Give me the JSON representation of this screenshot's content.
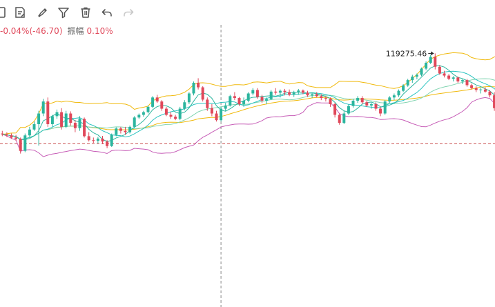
{
  "toolbar": {
    "items": [
      {
        "name": "draw-rect-icon",
        "interactable": true
      },
      {
        "name": "note-edit-icon",
        "interactable": true
      },
      {
        "name": "brush-icon",
        "interactable": true
      },
      {
        "name": "filter-icon",
        "interactable": true
      },
      {
        "name": "trash-icon",
        "interactable": true
      },
      {
        "name": "undo-icon",
        "interactable": true
      },
      {
        "name": "redo-icon",
        "interactable": false
      }
    ]
  },
  "info": {
    "change": "-0.04%(-46.70)",
    "amplitude_label": "振幅",
    "amplitude": "0.10%"
  },
  "colors": {
    "up": "#2bb59e",
    "down": "#e0485a",
    "ma_yellow": "#f0b90b",
    "ma_teal": "#29c3c0",
    "boll_mid": "#80d4b0",
    "boll_lower": "#c65bb6",
    "crosshair": "#888888",
    "price_line": "#c84a4a"
  },
  "chart_data": {
    "type": "candlestick",
    "high_label": "119275.46",
    "ylim": [
      118700,
      119320
    ],
    "price_line": 118937,
    "crosshair_index": 48,
    "candles": [
      [
        118975,
        118985,
        118965,
        118972
      ],
      [
        118972,
        118980,
        118962,
        118968
      ],
      [
        118968,
        118975,
        118955,
        118960
      ],
      [
        118960,
        118970,
        118948,
        118955
      ],
      [
        118955,
        118960,
        118900,
        118910
      ],
      [
        118910,
        118975,
        118905,
        118968
      ],
      [
        118968,
        119000,
        118960,
        118990
      ],
      [
        118990,
        119020,
        118985,
        119010
      ],
      [
        119010,
        119060,
        118930,
        119050
      ],
      [
        119050,
        119105,
        119040,
        119095
      ],
      [
        119095,
        119110,
        119000,
        119010
      ],
      [
        119010,
        119045,
        119000,
        119040
      ],
      [
        119040,
        119065,
        119030,
        119055
      ],
      [
        119055,
        119070,
        118990,
        119000
      ],
      [
        119000,
        119060,
        118995,
        119050
      ],
      [
        119050,
        119058,
        119005,
        119015
      ],
      [
        119015,
        119025,
        118980,
        118995
      ],
      [
        118995,
        119040,
        118985,
        119030
      ],
      [
        119030,
        119035,
        118960,
        118965
      ],
      [
        118965,
        118980,
        118945,
        118950
      ],
      [
        118950,
        118960,
        118940,
        118948
      ],
      [
        118948,
        118962,
        118938,
        118956
      ],
      [
        118956,
        118966,
        118935,
        118945
      ],
      [
        118945,
        118950,
        118920,
        118928
      ],
      [
        118928,
        118975,
        118925,
        118970
      ],
      [
        118970,
        118998,
        118965,
        118994
      ],
      [
        118994,
        119000,
        118975,
        118985
      ],
      [
        118985,
        119000,
        118970,
        118980
      ],
      [
        118980,
        119005,
        118975,
        119000
      ],
      [
        119000,
        119040,
        118995,
        119035
      ],
      [
        119035,
        119050,
        119030,
        119045
      ],
      [
        119045,
        119060,
        119038,
        119055
      ],
      [
        119055,
        119080,
        119050,
        119075
      ],
      [
        119075,
        119115,
        119070,
        119110
      ],
      [
        119110,
        119120,
        119090,
        119095
      ],
      [
        119095,
        119100,
        119060,
        119068
      ],
      [
        119068,
        119075,
        119040,
        119045
      ],
      [
        119045,
        119055,
        119030,
        119038
      ],
      [
        119038,
        119045,
        119025,
        119030
      ],
      [
        119030,
        119075,
        119025,
        119068
      ],
      [
        119068,
        119100,
        119062,
        119092
      ],
      [
        119092,
        119130,
        119085,
        119125
      ],
      [
        119125,
        119170,
        119118,
        119165
      ],
      [
        119165,
        119182,
        119140,
        119148
      ],
      [
        119148,
        119152,
        119095,
        119102
      ],
      [
        119102,
        119110,
        119060,
        119070
      ],
      [
        119070,
        119085,
        119040,
        119050
      ],
      [
        119050,
        119060,
        119020,
        119025
      ],
      [
        119025,
        119075,
        119020,
        119068
      ],
      [
        119068,
        119090,
        119060,
        119080
      ],
      [
        119080,
        119120,
        119076,
        119115
      ],
      [
        119115,
        119130,
        119100,
        119108
      ],
      [
        119108,
        119112,
        119078,
        119085
      ],
      [
        119085,
        119110,
        119075,
        119098
      ],
      [
        119098,
        119130,
        119092,
        119125
      ],
      [
        119125,
        119145,
        119118,
        119138
      ],
      [
        119138,
        119145,
        119105,
        119112
      ],
      [
        119112,
        119120,
        119090,
        119098
      ],
      [
        119098,
        119110,
        119085,
        119104
      ],
      [
        119104,
        119138,
        119100,
        119132
      ],
      [
        119132,
        119145,
        119120,
        119128
      ],
      [
        119128,
        119140,
        119110,
        119135
      ],
      [
        119135,
        119142,
        119118,
        119130
      ],
      [
        119130,
        119140,
        119115,
        119120
      ],
      [
        119120,
        119135,
        119112,
        119130
      ],
      [
        119130,
        119142,
        119120,
        119136
      ],
      [
        119136,
        119140,
        119122,
        119128
      ],
      [
        119128,
        119135,
        119112,
        119118
      ],
      [
        119118,
        119128,
        119108,
        119122
      ],
      [
        119122,
        119130,
        119110,
        119115
      ],
      [
        119115,
        119122,
        119100,
        119108
      ],
      [
        119108,
        119115,
        119095,
        119105
      ],
      [
        119105,
        119110,
        119075,
        119085
      ],
      [
        119085,
        119090,
        119035,
        119045
      ],
      [
        119045,
        119050,
        119008,
        119015
      ],
      [
        119015,
        119060,
        119010,
        119050
      ],
      [
        119050,
        119085,
        119045,
        119078
      ],
      [
        119078,
        119105,
        119072,
        119098
      ],
      [
        119098,
        119115,
        119090,
        119108
      ],
      [
        119108,
        119115,
        119085,
        119092
      ],
      [
        119092,
        119098,
        119075,
        119080
      ],
      [
        119080,
        119090,
        119068,
        119085
      ],
      [
        119085,
        119092,
        119060,
        119068
      ],
      [
        119068,
        119075,
        119040,
        119050
      ],
      [
        119050,
        119100,
        119045,
        119095
      ],
      [
        119095,
        119115,
        119090,
        119110
      ],
      [
        119110,
        119125,
        119100,
        119118
      ],
      [
        119118,
        119140,
        119112,
        119135
      ],
      [
        119135,
        119160,
        119130,
        119155
      ],
      [
        119155,
        119180,
        119150,
        119175
      ],
      [
        119175,
        119195,
        119165,
        119188
      ],
      [
        119188,
        119200,
        119178,
        119195
      ],
      [
        119195,
        119222,
        119190,
        119218
      ],
      [
        119218,
        119245,
        119212,
        119240
      ],
      [
        119240,
        119270,
        119235,
        119262
      ],
      [
        119262,
        119275,
        119215,
        119225
      ],
      [
        119225,
        119232,
        119195,
        119200
      ],
      [
        119200,
        119210,
        119185,
        119192
      ],
      [
        119192,
        119198,
        119175,
        119180
      ],
      [
        119180,
        119190,
        119170,
        119185
      ],
      [
        119185,
        119188,
        119165,
        119170
      ],
      [
        119170,
        119178,
        119160,
        119175
      ],
      [
        119175,
        119180,
        119150,
        119156
      ],
      [
        119156,
        119162,
        119140,
        119145
      ],
      [
        119145,
        119152,
        119130,
        119138
      ],
      [
        119138,
        119145,
        119125,
        119140
      ],
      [
        119140,
        119148,
        119128,
        119132
      ],
      [
        119132,
        119138,
        119110,
        119118
      ],
      [
        119118,
        119130,
        119060,
        119070
      ],
      [
        119070,
        119085,
        119040,
        119075
      ],
      [
        119075,
        119110,
        119070,
        119105
      ],
      [
        119105,
        119118,
        119095,
        119110
      ]
    ]
  }
}
